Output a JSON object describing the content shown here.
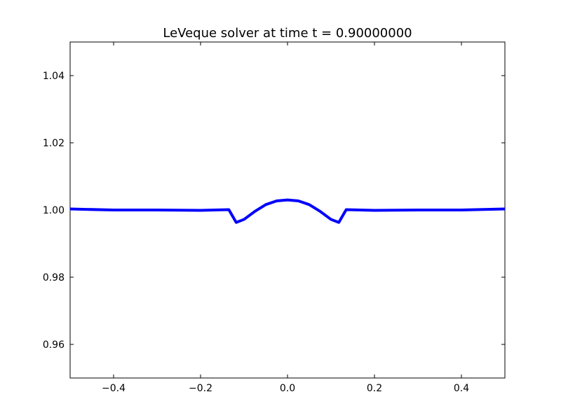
{
  "chart_data": {
    "type": "line",
    "title": "LeVeque solver at time t =     0.90000000",
    "xlabel": "",
    "ylabel": "",
    "xlim": [
      -0.5,
      0.5
    ],
    "ylim": [
      0.95,
      1.05
    ],
    "x_ticks": [
      {
        "value": -0.4,
        "label": "−0.4"
      },
      {
        "value": -0.2,
        "label": "−0.2"
      },
      {
        "value": 0.0,
        "label": "0.0"
      },
      {
        "value": 0.2,
        "label": "0.2"
      },
      {
        "value": 0.4,
        "label": "0.4"
      }
    ],
    "y_ticks": [
      {
        "value": 0.96,
        "label": "0.96"
      },
      {
        "value": 0.98,
        "label": "0.98"
      },
      {
        "value": 1.0,
        "label": "1.00"
      },
      {
        "value": 1.02,
        "label": "1.02"
      },
      {
        "value": 1.04,
        "label": "1.04"
      }
    ],
    "grid": false,
    "series": [
      {
        "color": "#0000ff",
        "x": [
          -0.5,
          -0.4,
          -0.3,
          -0.2,
          -0.135,
          -0.118,
          -0.1,
          -0.075,
          -0.05,
          -0.025,
          0.0,
          0.025,
          0.05,
          0.075,
          0.1,
          0.118,
          0.135,
          0.2,
          0.3,
          0.4,
          0.5
        ],
        "y": [
          1.0003,
          1.0,
          1.0,
          0.9999,
          1.0001,
          0.9963,
          0.9972,
          0.9996,
          1.0016,
          1.0027,
          1.003,
          1.0027,
          1.0016,
          0.9996,
          0.9972,
          0.9963,
          1.0001,
          0.9999,
          1.0,
          1.0,
          1.0003
        ]
      }
    ]
  }
}
